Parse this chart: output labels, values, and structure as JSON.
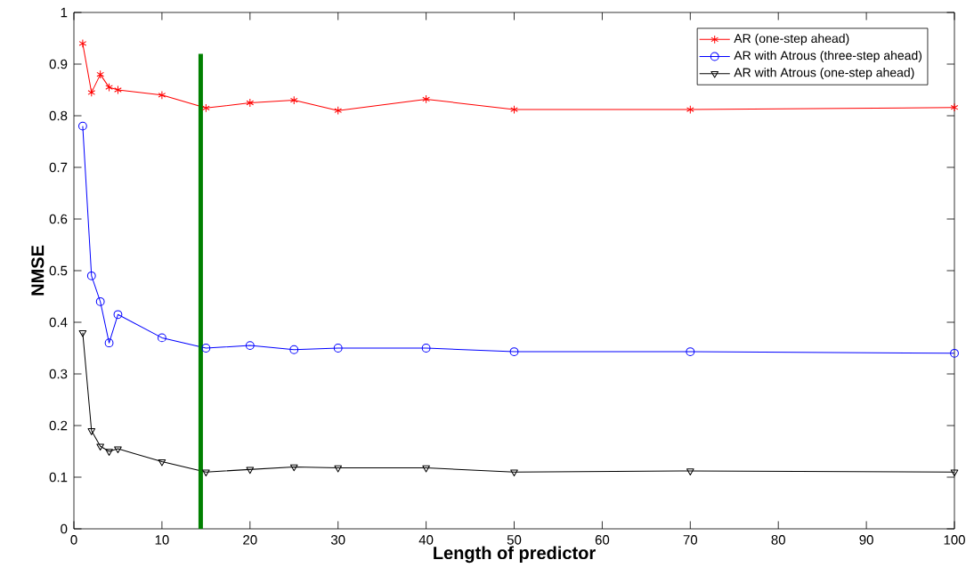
{
  "chart_data": {
    "type": "line",
    "xlabel": "Length of predictor",
    "ylabel": "NMSE",
    "xlim": [
      0,
      100
    ],
    "ylim": [
      0,
      1
    ],
    "xticks": [
      0,
      10,
      20,
      30,
      40,
      50,
      60,
      70,
      80,
      90,
      100
    ],
    "yticks": [
      0,
      0.1,
      0.2,
      0.3,
      0.4,
      0.5,
      0.6,
      0.7,
      0.8,
      0.9,
      1
    ],
    "grid": false,
    "legend": "top right",
    "line_style": "solid",
    "x": [
      1,
      2,
      3,
      4,
      5,
      10,
      15,
      20,
      25,
      30,
      40,
      50,
      70,
      100
    ],
    "series": [
      {
        "name": "AR (one-step ahead)",
        "color": "#ff0000",
        "marker": "cross",
        "values": [
          0.94,
          0.845,
          0.88,
          0.855,
          0.85,
          0.84,
          0.815,
          0.825,
          0.83,
          0.81,
          0.832,
          0.812,
          0.812,
          0.816
        ]
      },
      {
        "name": "AR with Atrous (three-step ahead)",
        "color": "#0000ff",
        "marker": "circle",
        "values": [
          0.78,
          0.49,
          0.44,
          0.36,
          0.415,
          0.37,
          0.35,
          0.355,
          0.347,
          0.35,
          0.35,
          0.343,
          0.343,
          0.34
        ]
      },
      {
        "name": "AR with Atrous (one-step ahead)",
        "color": "#000000",
        "marker": "triangle",
        "values": [
          0.38,
          0.19,
          0.16,
          0.15,
          0.155,
          0.13,
          0.11,
          0.115,
          0.12,
          0.118,
          0.118,
          0.11,
          0.112,
          0.11
        ]
      },
      {
        "color": "#008000",
        "marker": "none",
        "x": [
          14.4,
          14.4
        ],
        "values": [
          0,
          0.92
        ]
      }
    ]
  }
}
